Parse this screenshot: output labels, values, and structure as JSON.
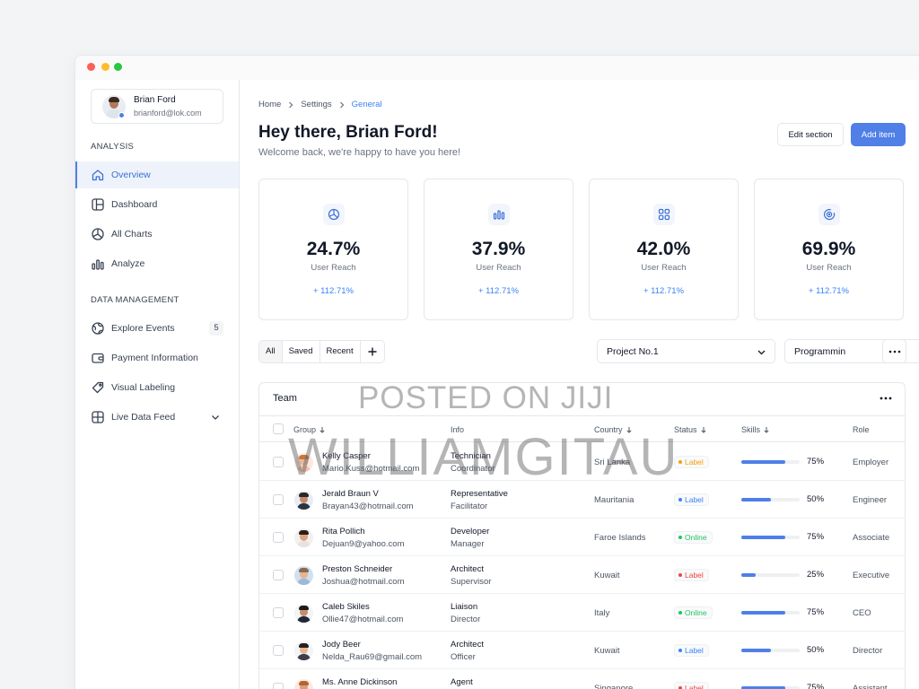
{
  "profile": {
    "name": "Brian Ford",
    "email": "brianford@lok.com"
  },
  "sidebar": {
    "analysis_label": "ANALYSIS",
    "data_label": "DATA MANAGEMENT",
    "items": [
      {
        "label": "Overview",
        "icon": "home-icon",
        "active": true
      },
      {
        "label": "Dashboard",
        "icon": "dashboard-icon"
      },
      {
        "label": "All Charts",
        "icon": "pie-chart-icon"
      },
      {
        "label": "Analyze",
        "icon": "bar-chart-icon"
      },
      {
        "label": "Explore Events",
        "icon": "globe-icon",
        "badge": "5"
      },
      {
        "label": "Payment Information",
        "icon": "wallet-icon"
      },
      {
        "label": "Visual Labeling",
        "icon": "tag-icon"
      },
      {
        "label": "Live Data Feed",
        "icon": "grid-icon",
        "chevron": true
      }
    ]
  },
  "breadcrumb": [
    "Home",
    "Settings",
    "General"
  ],
  "header": {
    "title": "Hey there, Brian Ford!",
    "subtitle": "Welcome back, we're happy to have you here!",
    "edit_label": "Edit section",
    "add_label": "Add item"
  },
  "stats": [
    {
      "value": "24.7%",
      "label": "User Reach",
      "change": "+ 112.71%",
      "icon": "pie-chart-icon"
    },
    {
      "value": "37.9%",
      "label": "User Reach",
      "change": "+ 112.71%",
      "icon": "bar-chart-icon"
    },
    {
      "value": "42.0%",
      "label": "User Reach",
      "change": "+ 112.71%",
      "icon": "apps-icon"
    },
    {
      "value": "69.9%",
      "label": "User Reach",
      "change": "+ 112.71%",
      "icon": "target-icon"
    }
  ],
  "filters": {
    "tabs": [
      "All",
      "Saved",
      "Recent"
    ],
    "project": "Project No.1",
    "category": "Programmin"
  },
  "table": {
    "title": "Team",
    "columns": [
      "Group",
      "Info",
      "Country",
      "Status",
      "Skills",
      "Role"
    ],
    "rows": [
      {
        "name": "Kelly Casper",
        "email": "Mario.Kuss@hotmail.com",
        "title": "Technician",
        "subtitle": "Coordinator",
        "country": "Sri Lanka",
        "status": "Label",
        "status_color": "#f59e0b",
        "skill": 0.75,
        "skill_text": "75%",
        "role": "Employer",
        "skin": "#e8b89a",
        "hair": "#c7773f",
        "shirt": "#f4c2a8",
        "bg": "#fde8e1"
      },
      {
        "name": "Jerald Braun V",
        "email": "Brayan43@hotmail.com",
        "title": "Representative",
        "subtitle": "Facilitator",
        "country": "Mauritania",
        "status": "Label",
        "status_color": "#3b82f6",
        "skill": 0.5,
        "skill_text": "50%",
        "role": "Engineer",
        "skin": "#c28a6a",
        "hair": "#2f2520",
        "shirt": "#2b3442",
        "bg": "#e9edf3"
      },
      {
        "name": "Rita Pollich",
        "email": "Dejuan9@yahoo.com",
        "title": "Developer",
        "subtitle": "Manager",
        "country": "Faroe Islands",
        "status": "Online",
        "status_color": "#22c55e",
        "skill": 0.75,
        "skill_text": "75%",
        "role": "Associate",
        "skin": "#d9a383",
        "hair": "#2b1d17",
        "shirt": "#e9e2dc",
        "bg": "#f3f0ee"
      },
      {
        "name": "Preston Schneider",
        "email": "Joshua@hotmail.com",
        "title": "Architect",
        "subtitle": "Supervisor",
        "country": "Kuwait",
        "status": "Label",
        "status_color": "#ef4444",
        "skill": 0.25,
        "skill_text": "25%",
        "role": "Executive",
        "skin": "#e3b594",
        "hair": "#8b6a4f",
        "shirt": "#9fb8d6",
        "bg": "#cfe0ef"
      },
      {
        "name": "Caleb Skiles",
        "email": "Ollie47@hotmail.com",
        "title": "Liaison",
        "subtitle": "Director",
        "country": "Italy",
        "status": "Online",
        "status_color": "#22c55e",
        "skill": 0.75,
        "skill_text": "75%",
        "role": "CEO",
        "skin": "#c48e6d",
        "hair": "#1f1a17",
        "shirt": "#1f2937",
        "bg": "#f3f4f6"
      },
      {
        "name": "Jody Beer",
        "email": "Nelda_Rau69@gmail.com",
        "title": "Architect",
        "subtitle": "Officer",
        "country": "Kuwait",
        "status": "Label",
        "status_color": "#3b82f6",
        "skill": 0.5,
        "skill_text": "50%",
        "role": "Director",
        "skin": "#e2b596",
        "hair": "#2a1e18",
        "shirt": "#3a3f4a",
        "bg": "#f3f4f6"
      },
      {
        "name": "Ms. Anne Dickinson",
        "email": "",
        "title": "Agent",
        "subtitle": "",
        "country": "Singapore",
        "status": "Label",
        "status_color": "#ef4444",
        "skill": 0.75,
        "skill_text": "75%",
        "role": "Assistant",
        "skin": "#d8a07d",
        "hair": "#b5652f",
        "shirt": "#e8b89a",
        "bg": "#fde8e1"
      }
    ]
  },
  "watermark": {
    "line1": "POSTED ON JIJI",
    "line2": "WILLIAMGITAU"
  },
  "colors": {
    "accent": "#4f7fe7",
    "link": "#3b82f6",
    "border": "#e5e7eb"
  }
}
